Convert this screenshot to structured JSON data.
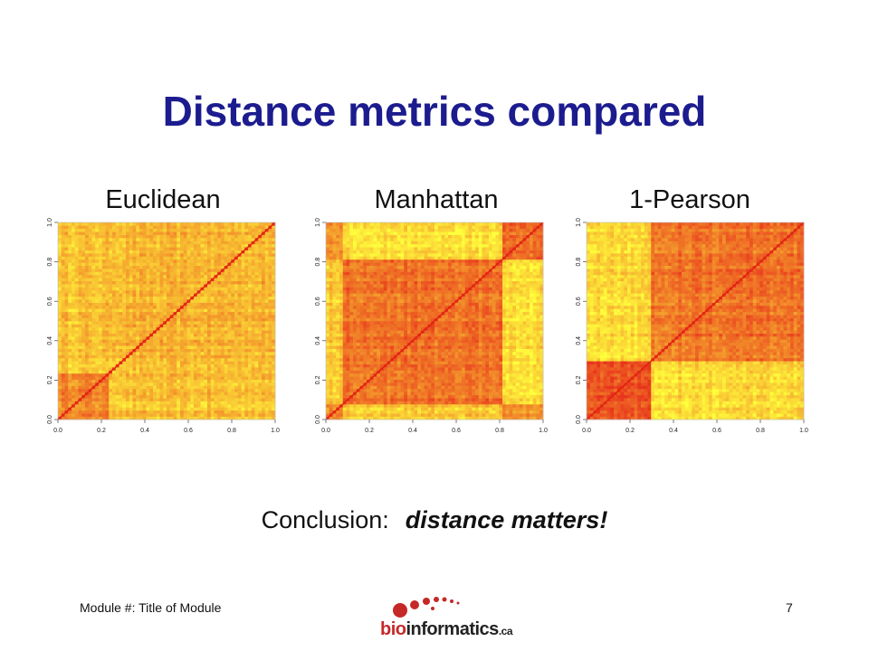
{
  "slide": {
    "title": "Distance metrics compared",
    "conclusion_label": "Conclusion:",
    "conclusion_text": "distance matters!",
    "footer_left": "Module #: Title of Module",
    "page_number": "7",
    "logo": {
      "prefix": "bio",
      "main": "informatics",
      "suffix": ".ca"
    }
  },
  "colors": {
    "title": "#1c1c8f",
    "heat_low": "#ffff33",
    "heat_high": "#e8341c",
    "diagonal": "#e02010"
  },
  "chart_data": [
    {
      "type": "heatmap",
      "title": "Euclidean",
      "xlabel": "",
      "ylabel": "",
      "xlim": [
        0,
        1
      ],
      "ylim": [
        0,
        1
      ],
      "xticks": [
        "0.0",
        "0.2",
        "0.4",
        "0.6",
        "0.8",
        "1.0"
      ],
      "yticks": [
        "0.0",
        "0.2",
        "0.4",
        "0.6",
        "0.8",
        "1.0"
      ],
      "cluster_breaks": [
        0.24
      ],
      "block_intensity": [
        [
          0.6,
          0.3
        ],
        [
          0.3,
          0.35
        ]
      ],
      "diagonal": 1.0
    },
    {
      "type": "heatmap",
      "title": "Manhattan",
      "xlabel": "",
      "ylabel": "",
      "xlim": [
        0,
        1
      ],
      "ylim": [
        0,
        1
      ],
      "xticks": [
        "0.0",
        "0.2",
        "0.4",
        "0.6",
        "0.8",
        "1.0"
      ],
      "yticks": [
        "0.0",
        "0.2",
        "0.4",
        "0.6",
        "0.8",
        "1.0"
      ],
      "cluster_breaks": [
        0.08,
        0.82
      ],
      "block_intensity": [
        [
          0.65,
          0.3,
          0.55
        ],
        [
          0.3,
          0.7,
          0.15
        ],
        [
          0.55,
          0.15,
          0.7
        ]
      ],
      "diagonal": 1.0
    },
    {
      "type": "heatmap",
      "title": "1-Pearson",
      "xlabel": "",
      "ylabel": "",
      "xlim": [
        0,
        1
      ],
      "ylim": [
        0,
        1
      ],
      "xticks": [
        "0.0",
        "0.2",
        "0.4",
        "0.6",
        "0.8",
        "1.0"
      ],
      "yticks": [
        "0.0",
        "0.2",
        "0.4",
        "0.6",
        "0.8",
        "1.0"
      ],
      "cluster_breaks": [
        0.3
      ],
      "block_intensity": [
        [
          0.88,
          0.2
        ],
        [
          0.2,
          0.7
        ]
      ],
      "diagonal": 1.0
    }
  ]
}
